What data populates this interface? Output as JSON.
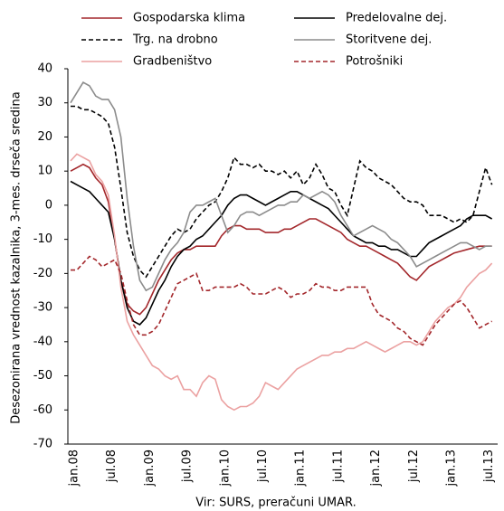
{
  "chart_data": {
    "type": "line",
    "y_label": "Desezonirana vrednost kazalnika, 3-mes. drseča sredina",
    "source": "Vir: SURS, preračuni UMAR.",
    "categories": [
      "jan.08",
      null,
      null,
      null,
      null,
      null,
      "jul.08",
      null,
      null,
      null,
      null,
      null,
      "jan.09",
      null,
      null,
      null,
      null,
      null,
      "jul.09",
      null,
      null,
      null,
      null,
      null,
      "jan.10",
      null,
      null,
      null,
      null,
      null,
      "jul.10",
      null,
      null,
      null,
      null,
      null,
      "jan.11",
      null,
      null,
      null,
      null,
      null,
      "jul.11",
      null,
      null,
      null,
      null,
      null,
      "jan.12",
      null,
      null,
      null,
      null,
      null,
      "jul.12",
      null,
      null,
      null,
      null,
      null,
      "jan.13",
      null,
      null,
      null,
      null,
      null,
      "jul.13",
      null
    ],
    "ylim": [
      -70,
      40
    ],
    "yticks": [
      -70,
      -60,
      -50,
      -40,
      -30,
      -20,
      -10,
      0,
      10,
      20,
      30,
      40
    ],
    "series": [
      {
        "name": "Gospodarska klima",
        "color": "#a3272b",
        "dashed": false,
        "values": [
          10,
          11,
          12,
          11,
          8,
          6,
          1,
          -10,
          -22,
          -29,
          -31,
          -32,
          -30,
          -26,
          -22,
          -19,
          -16,
          -14,
          -13,
          -13,
          -12,
          -12,
          -12,
          -12,
          -9,
          -7,
          -6,
          -6,
          -7,
          -7,
          -7,
          -8,
          -8,
          -8,
          -7,
          -7,
          -6,
          -5,
          -4,
          -4,
          -5,
          -6,
          -7,
          -8,
          -10,
          -11,
          -12,
          -12,
          -13,
          -14,
          -15,
          -16,
          -17,
          -19,
          -21,
          -22,
          -20,
          -18,
          -17,
          -16,
          -15,
          -14,
          -13.5,
          -13,
          -12.5,
          -12,
          -12,
          -12
        ]
      },
      {
        "name": "Predelovalne dej.",
        "color": "#000000",
        "dashed": false,
        "values": [
          7,
          6,
          5,
          4,
          2,
          0,
          -2,
          -10,
          -22,
          -30,
          -34,
          -35,
          -33,
          -29,
          -25,
          -22,
          -18,
          -15,
          -13,
          -12,
          -10,
          -9,
          -7,
          -5,
          -3,
          0,
          2,
          3,
          3,
          2,
          1,
          0,
          1,
          2,
          3,
          4,
          4,
          3,
          2,
          1,
          0,
          -1,
          -3,
          -5,
          -7,
          -9,
          -10,
          -11,
          -11,
          -12,
          -12,
          -13,
          -13,
          -14,
          -15,
          -15,
          -13,
          -11,
          -10,
          -9,
          -8,
          -7,
          -6,
          -4,
          -3,
          -3,
          -3,
          -4
        ]
      },
      {
        "name": "Trg. na drobno",
        "color": "#000000",
        "dashed": true,
        "values": [
          29,
          29,
          28,
          28,
          27,
          26,
          24,
          17,
          5,
          -8,
          -15,
          -19,
          -21,
          -18,
          -15,
          -12,
          -9,
          -7,
          -8,
          -7,
          -4,
          -2,
          0,
          1,
          4,
          8,
          14,
          12,
          12,
          11,
          12,
          10,
          10,
          9,
          10,
          8,
          10,
          6,
          8,
          12,
          9,
          5,
          4,
          0,
          -3,
          5,
          13,
          11,
          10,
          8,
          7,
          6,
          4,
          2,
          1,
          1,
          0,
          -3,
          -3,
          -3,
          -4,
          -5,
          -4,
          -5,
          -3,
          4,
          11,
          6
        ]
      },
      {
        "name": "Storitvene dej.",
        "color": "#8c8c8c",
        "dashed": false,
        "values": [
          30,
          33,
          36,
          35,
          32,
          31,
          31,
          28,
          20,
          2,
          -12,
          -22,
          -25,
          -24,
          -20,
          -16,
          -13,
          -11,
          -8,
          -2,
          0,
          0,
          1,
          2,
          -3,
          -8,
          -6,
          -3,
          -2,
          -2,
          -3,
          -2,
          -1,
          0,
          0,
          1,
          1,
          3,
          2,
          3,
          4,
          3,
          1,
          -3,
          -6,
          -9,
          -8,
          -7,
          -6,
          -7,
          -8,
          -10,
          -11,
          -13,
          -15,
          -18,
          -17,
          -16,
          -15,
          -14,
          -13,
          -12,
          -11,
          -11,
          -12,
          -13,
          -12,
          -12
        ]
      },
      {
        "name": "Gradbeništvo",
        "color": "#eba1a1",
        "dashed": false,
        "values": [
          13,
          15,
          14,
          13,
          9,
          7,
          3,
          -9,
          -24,
          -34,
          -38,
          -41,
          -44,
          -47,
          -48,
          -50,
          -51,
          -50,
          -54,
          -54,
          -56,
          -52,
          -50,
          -51,
          -57,
          -59,
          -60,
          -59,
          -59,
          -58,
          -56,
          -52,
          -53,
          -54,
          -52,
          -50,
          -48,
          -47,
          -46,
          -45,
          -44,
          -44,
          -43,
          -43,
          -42,
          -42,
          -41,
          -40,
          -41,
          -42,
          -43,
          -42,
          -41,
          -40,
          -40,
          -41,
          -40,
          -37,
          -34,
          -32,
          -30,
          -29,
          -27,
          -24,
          -22,
          -20,
          -19,
          -17
        ]
      },
      {
        "name": "Potrošniki",
        "color": "#a3272b",
        "dashed": true,
        "values": [
          -19,
          -19,
          -17,
          -15,
          -16,
          -18,
          -17,
          -16,
          -20,
          -28,
          -35,
          -38,
          -38,
          -37,
          -35,
          -31,
          -27,
          -23,
          -22,
          -21,
          -20,
          -25,
          -25,
          -24,
          -24,
          -24,
          -24,
          -23,
          -24,
          -26,
          -26,
          -26,
          -25,
          -24,
          -25,
          -27,
          -26,
          -26,
          -25,
          -23,
          -24,
          -24,
          -25,
          -25,
          -24,
          -24,
          -24,
          -24,
          -29,
          -32,
          -33,
          -34,
          -36,
          -37,
          -39,
          -40,
          -41,
          -38,
          -35,
          -33,
          -31,
          -29,
          -28,
          -30,
          -33,
          -36,
          -35,
          -34
        ]
      }
    ]
  }
}
